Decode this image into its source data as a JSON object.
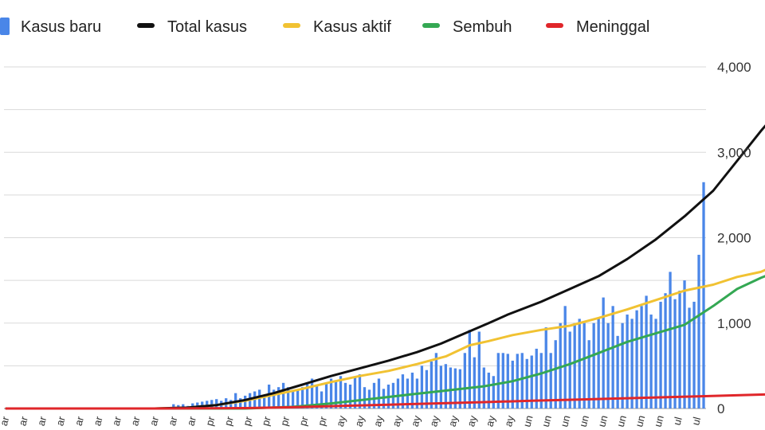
{
  "chart_data": {
    "type": "bar",
    "legend_position": "top",
    "grid": true,
    "ylim": [
      0,
      4000
    ],
    "y_ticks": [
      "0",
      "1,000",
      "2,000",
      "3,000",
      "4,000"
    ],
    "y_tick_values": [
      0,
      1000,
      2000,
      3000,
      4000
    ],
    "x_tick_labels": [
      "ar",
      "ar",
      "ar",
      "ar",
      "ar",
      "ar",
      "ar",
      "ar",
      "ar",
      "ar",
      "ar",
      "pr",
      "pr",
      "pr",
      "pr",
      "pr",
      "pr",
      "pr",
      "ay",
      "ay",
      "ay",
      "ay",
      "ay",
      "ay",
      "ay",
      "ay",
      "ay",
      "ay",
      "un",
      "un",
      "un",
      "un",
      "un",
      "un",
      "un",
      "un",
      "ul",
      "ul"
    ],
    "legend": [
      {
        "label": "Kasus baru",
        "color": "#4a86e8",
        "kind": "bar"
      },
      {
        "label": "Total kasus",
        "color": "#111111",
        "kind": "line"
      },
      {
        "label": "Kasus aktif",
        "color": "#f1c232",
        "kind": "line"
      },
      {
        "label": "Sembuh",
        "color": "#34a853",
        "kind": "line"
      },
      {
        "label": "Meninggal",
        "color": "#e0262a",
        "kind": "line"
      }
    ],
    "series": [
      {
        "name": "Kasus baru",
        "kind": "bar",
        "color": "#4a86e8",
        "values": [
          0,
          0,
          0,
          0,
          0,
          0,
          0,
          0,
          0,
          0,
          0,
          0,
          0,
          0,
          0,
          0,
          0,
          0,
          0,
          0,
          0,
          0,
          0,
          0,
          0,
          0,
          0,
          0,
          0,
          0,
          0,
          0,
          0,
          0,
          0,
          50,
          40,
          50,
          30,
          60,
          70,
          80,
          90,
          100,
          110,
          90,
          120,
          100,
          180,
          120,
          150,
          180,
          200,
          220,
          160,
          280,
          220,
          250,
          300,
          250,
          200,
          220,
          250,
          300,
          350,
          280,
          200,
          300,
          350,
          320,
          380,
          300,
          280,
          370,
          400,
          250,
          220,
          300,
          350,
          230,
          280,
          300,
          350,
          400,
          350,
          420,
          350,
          500,
          450,
          550,
          650,
          500,
          520,
          480,
          470,
          460,
          650,
          920,
          600,
          900,
          480,
          420,
          380,
          650,
          650,
          640,
          560,
          640,
          650,
          580,
          620,
          700,
          650,
          950,
          650,
          800,
          1000,
          1200,
          900,
          1000,
          1050,
          1000,
          800,
          1000,
          1050,
          1300,
          1000,
          1200,
          850,
          1000,
          1100,
          1050,
          1150,
          1200,
          1320,
          1100,
          1050,
          1250,
          1350,
          1600,
          1280,
          1380,
          1500,
          1180,
          1250,
          1800,
          2650
        ]
      },
      {
        "name": "Total kasus",
        "kind": "line",
        "color": "#111111",
        "points": [
          [
            0,
            0
          ],
          [
            31,
            0
          ],
          [
            38,
            10
          ],
          [
            44,
            40
          ],
          [
            50,
            100
          ],
          [
            56,
            180
          ],
          [
            62,
            280
          ],
          [
            68,
            380
          ],
          [
            74,
            470
          ],
          [
            80,
            560
          ],
          [
            86,
            660
          ],
          [
            91,
            760
          ],
          [
            96,
            880
          ],
          [
            101,
            1000
          ],
          [
            105,
            1100
          ],
          [
            112,
            1250
          ],
          [
            118,
            1400
          ],
          [
            124,
            1550
          ],
          [
            130,
            1750
          ],
          [
            136,
            1980
          ],
          [
            142,
            2250
          ],
          [
            148,
            2550
          ],
          [
            153,
            2900
          ],
          [
            158,
            3250
          ],
          [
            160,
            3380
          ],
          [
            162,
            3550
          ]
        ]
      },
      {
        "name": "Kasus aktif",
        "kind": "line",
        "color": "#f1c232",
        "points": [
          [
            0,
            0
          ],
          [
            31,
            0
          ],
          [
            38,
            10
          ],
          [
            44,
            40
          ],
          [
            50,
            90
          ],
          [
            56,
            160
          ],
          [
            62,
            230
          ],
          [
            68,
            310
          ],
          [
            74,
            380
          ],
          [
            80,
            440
          ],
          [
            86,
            520
          ],
          [
            92,
            610
          ],
          [
            97,
            740
          ],
          [
            101,
            790
          ],
          [
            106,
            860
          ],
          [
            112,
            920
          ],
          [
            118,
            970
          ],
          [
            124,
            1060
          ],
          [
            130,
            1160
          ],
          [
            136,
            1270
          ],
          [
            142,
            1380
          ],
          [
            148,
            1450
          ],
          [
            153,
            1540
          ],
          [
            158,
            1600
          ],
          [
            160,
            1650
          ],
          [
            162,
            1700
          ]
        ]
      },
      {
        "name": "Sembuh",
        "kind": "line",
        "color": "#34a853",
        "points": [
          [
            0,
            0
          ],
          [
            31,
            0
          ],
          [
            50,
            0
          ],
          [
            60,
            20
          ],
          [
            68,
            60
          ],
          [
            76,
            110
          ],
          [
            84,
            160
          ],
          [
            92,
            210
          ],
          [
            100,
            260
          ],
          [
            106,
            320
          ],
          [
            112,
            410
          ],
          [
            118,
            520
          ],
          [
            124,
            650
          ],
          [
            130,
            780
          ],
          [
            136,
            880
          ],
          [
            142,
            980
          ],
          [
            148,
            1200
          ],
          [
            153,
            1400
          ],
          [
            158,
            1530
          ],
          [
            162,
            1620
          ]
        ]
      },
      {
        "name": "Meninggal",
        "kind": "line",
        "color": "#e0262a",
        "points": [
          [
            0,
            0
          ],
          [
            31,
            0
          ],
          [
            50,
            5
          ],
          [
            60,
            15
          ],
          [
            70,
            30
          ],
          [
            80,
            45
          ],
          [
            90,
            60
          ],
          [
            100,
            75
          ],
          [
            110,
            90
          ],
          [
            120,
            105
          ],
          [
            130,
            120
          ],
          [
            140,
            135
          ],
          [
            150,
            150
          ],
          [
            162,
            170
          ]
        ]
      }
    ]
  }
}
